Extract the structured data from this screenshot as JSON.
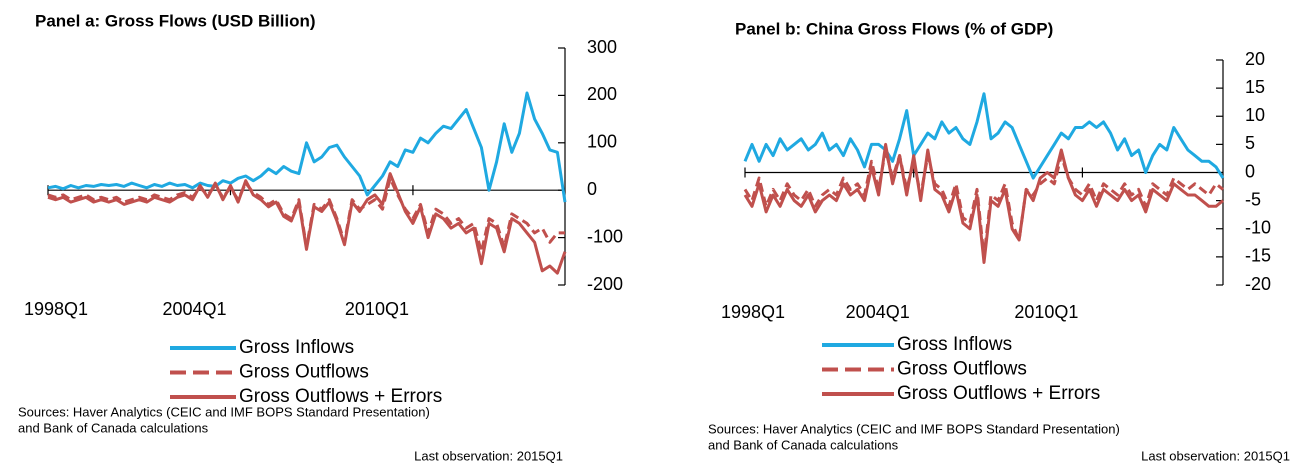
{
  "chart_data": [
    {
      "type": "line",
      "title": "Panel a: Gross Flows (USD Billion)",
      "categories": [
        "1998Q1",
        null,
        null,
        null,
        null,
        null,
        null,
        null,
        null,
        null,
        null,
        null,
        null,
        null,
        null,
        null,
        null,
        null,
        null,
        null,
        null,
        null,
        null,
        null,
        "2004Q1",
        null,
        null,
        null,
        null,
        null,
        null,
        null,
        null,
        null,
        null,
        null,
        null,
        null,
        null,
        null,
        null,
        null,
        null,
        null,
        null,
        null,
        null,
        null,
        "2010Q1",
        null,
        null,
        null,
        null,
        null,
        null,
        null,
        null,
        null,
        null,
        null,
        null,
        null,
        null,
        null,
        null,
        null,
        null,
        null,
        null
      ],
      "series": [
        {
          "name": "Gross Inflows",
          "color": "#1fa9e1",
          "line_style": "solid",
          "values": [
            5,
            8,
            3,
            10,
            5,
            10,
            8,
            12,
            10,
            12,
            8,
            15,
            10,
            5,
            12,
            8,
            15,
            10,
            12,
            5,
            15,
            10,
            8,
            20,
            15,
            25,
            30,
            20,
            30,
            45,
            35,
            50,
            40,
            35,
            100,
            60,
            70,
            90,
            95,
            70,
            50,
            30,
            -10,
            10,
            30,
            60,
            50,
            85,
            80,
            110,
            100,
            120,
            135,
            130,
            150,
            170,
            130,
            90,
            0,
            60,
            140,
            80,
            120,
            205,
            150,
            120,
            85,
            80,
            -25
          ]
        },
        {
          "name": "Gross Outflows",
          "color": "#c0504d",
          "line_style": "dashed",
          "values": [
            -10,
            -15,
            -10,
            -20,
            -15,
            -10,
            -20,
            -15,
            -20,
            -15,
            -25,
            -20,
            -15,
            -20,
            -10,
            -15,
            -20,
            -10,
            -5,
            -15,
            5,
            -10,
            10,
            -15,
            5,
            -20,
            15,
            -5,
            -15,
            -30,
            -20,
            -50,
            -60,
            -20,
            -120,
            -30,
            -40,
            -20,
            -60,
            -110,
            -20,
            -40,
            -30,
            -20,
            -40,
            25,
            -10,
            -40,
            -60,
            -30,
            -90,
            -40,
            -50,
            -70,
            -60,
            -80,
            -70,
            -130,
            -60,
            -70,
            -120,
            -50,
            -60,
            -70,
            -90,
            -80,
            -110,
            -90,
            -90
          ]
        },
        {
          "name": "Gross Outflows + Errors",
          "color": "#c0504d",
          "line_style": "solid",
          "values": [
            -15,
            -20,
            -15,
            -25,
            -20,
            -15,
            -25,
            -20,
            -25,
            -20,
            -30,
            -25,
            -20,
            -25,
            -15,
            -20,
            -25,
            -15,
            -10,
            -20,
            10,
            -15,
            15,
            -20,
            10,
            -25,
            20,
            -10,
            -20,
            -35,
            -25,
            -55,
            -65,
            -25,
            -125,
            -35,
            -45,
            -25,
            -65,
            -115,
            -25,
            -45,
            -20,
            -10,
            -30,
            35,
            -5,
            -45,
            -70,
            -35,
            -100,
            -50,
            -60,
            -80,
            -70,
            -90,
            -80,
            -155,
            -70,
            -80,
            -130,
            -60,
            -70,
            -90,
            -110,
            -170,
            -160,
            -175,
            -130
          ]
        }
      ],
      "ylim": [
        -200,
        300
      ],
      "yticks": [
        -200,
        -100,
        0,
        100,
        200,
        300
      ],
      "notes": [
        "Sources: Haver Analytics  (CEIC and IMF BOPS Standard Presentation)",
        "and Bank of Canada calculations"
      ],
      "last_observation": "Last observation: 2015Q1"
    },
    {
      "type": "line",
      "title": "Panel b: China Gross Flows (% of GDP)",
      "categories": [
        "1998Q1",
        null,
        null,
        null,
        null,
        null,
        null,
        null,
        null,
        null,
        null,
        null,
        null,
        null,
        null,
        null,
        null,
        null,
        null,
        null,
        null,
        null,
        null,
        null,
        "2004Q1",
        null,
        null,
        null,
        null,
        null,
        null,
        null,
        null,
        null,
        null,
        null,
        null,
        null,
        null,
        null,
        null,
        null,
        null,
        null,
        null,
        null,
        null,
        null,
        "2010Q1",
        null,
        null,
        null,
        null,
        null,
        null,
        null,
        null,
        null,
        null,
        null,
        null,
        null,
        null,
        null,
        null,
        null,
        null,
        null,
        null
      ],
      "series": [
        {
          "name": "Gross Inflows",
          "color": "#1fa9e1",
          "line_style": "solid",
          "values": [
            2,
            5,
            2,
            5,
            3,
            6,
            4,
            5,
            6,
            4,
            5,
            7,
            4,
            5,
            3,
            6,
            4,
            1,
            5,
            5,
            4,
            2,
            6,
            11,
            3,
            5,
            7,
            6,
            9,
            7,
            8,
            6,
            5,
            9,
            14,
            6,
            7,
            9,
            8,
            5,
            2,
            -1,
            1,
            3,
            5,
            7,
            6,
            8,
            8,
            9,
            8,
            9,
            7,
            4,
            6,
            3,
            4,
            0,
            3,
            5,
            4,
            8,
            6,
            4,
            3,
            2,
            2,
            1,
            -1
          ]
        },
        {
          "name": "Gross Outflows",
          "color": "#c0504d",
          "line_style": "dashed",
          "values": [
            -3,
            -5,
            -1,
            -6,
            -3,
            -5,
            -2,
            -4,
            -5,
            -3,
            -6,
            -4,
            -3,
            -4,
            -1,
            -3,
            -2,
            -4,
            2,
            -3,
            4,
            -1,
            3,
            -3,
            2,
            -4,
            3,
            -2,
            -3,
            -6,
            -2,
            -8,
            -9,
            -3,
            -15,
            -4,
            -5,
            -2,
            -9,
            -12,
            -3,
            -4,
            -2,
            -1,
            -2,
            3,
            -1,
            -3,
            -4,
            -2,
            -5,
            -2,
            -3,
            -4,
            -2,
            -4,
            -3,
            -6,
            -2,
            -3,
            -4,
            -1,
            -2,
            -3,
            -2,
            -3,
            -4,
            -2,
            -3
          ]
        },
        {
          "name": "Gross Outflows + Errors",
          "color": "#c0504d",
          "line_style": "solid",
          "values": [
            -4,
            -6,
            -2,
            -7,
            -4,
            -6,
            -3,
            -5,
            -6,
            -4,
            -7,
            -5,
            -4,
            -5,
            -2,
            -4,
            -3,
            -5,
            1,
            -4,
            5,
            -2,
            3,
            -4,
            3,
            -5,
            4,
            -3,
            -4,
            -7,
            -3,
            -9,
            -10,
            -4,
            -16,
            -5,
            -6,
            -3,
            -10,
            -12,
            -3,
            -5,
            -1,
            0,
            -1,
            4,
            -1,
            -4,
            -5,
            -3,
            -6,
            -3,
            -4,
            -5,
            -3,
            -5,
            -4,
            -7,
            -3,
            -4,
            -5,
            -2,
            -3,
            -4,
            -4,
            -5,
            -6,
            -6,
            -5
          ]
        }
      ],
      "ylim": [
        -20,
        20
      ],
      "yticks": [
        -20,
        -15,
        -10,
        -5,
        0,
        5,
        10,
        15,
        20
      ],
      "notes": [
        "Sources: Haver Analytics  (CEIC and IMF BOPS Standard Presentation)",
        "and Bank of Canada calculations"
      ],
      "last_observation": "Last observation: 2015Q1"
    }
  ]
}
